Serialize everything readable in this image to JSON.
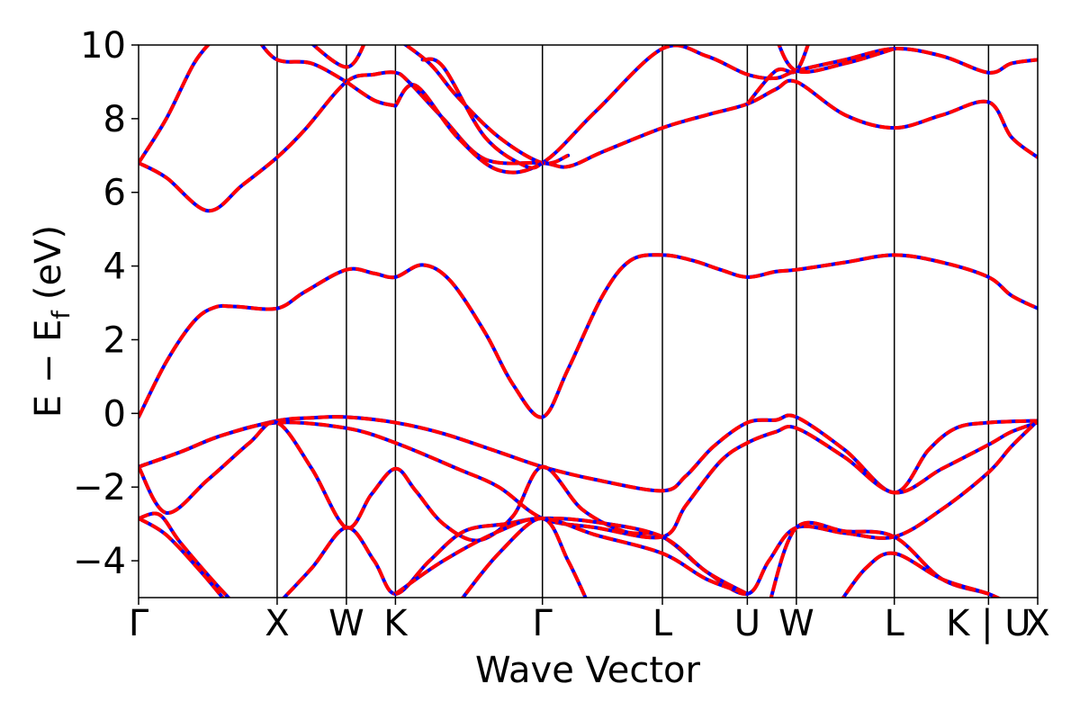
{
  "chart_data": {
    "type": "line",
    "title": "",
    "xlabel": "Wave Vector",
    "ylabel_main": "E − E",
    "ylabel_sub": "f",
    "ylabel_unit": "(eV)",
    "ylim": [
      -5,
      10
    ],
    "yticks": [
      -4,
      -2,
      0,
      2,
      4,
      6,
      8,
      10
    ],
    "ytick_labels": [
      "−4",
      "−2",
      "0",
      "2",
      "4",
      "6",
      "8",
      "10"
    ],
    "xlim": [
      0,
      6.49
    ],
    "grid": false,
    "legend": "none",
    "colors": {
      "line_primary": "#0000ff",
      "line_overlay": "#ff0000",
      "axis": "#000000"
    },
    "kpoints": [
      {
        "label": "Γ",
        "x": 0.0
      },
      {
        "label": "X",
        "x": 1.0
      },
      {
        "label": "W",
        "x": 1.5
      },
      {
        "label": "K",
        "x": 1.854
      },
      {
        "label": "Γ",
        "x": 2.915
      },
      {
        "label": "L",
        "x": 3.781
      },
      {
        "label": "U",
        "x": 4.394
      },
      {
        "label": "W",
        "x": 4.748
      },
      {
        "label": "L",
        "x": 5.455
      },
      {
        "label": "K | U",
        "x": 6.135
      },
      {
        "label": "X",
        "x": 6.49
      }
    ],
    "series": [
      {
        "values": [
          [
            0,
            -0.1
          ],
          [
            0.2,
            1.4
          ],
          [
            0.4,
            2.5
          ],
          [
            0.55,
            2.88
          ],
          [
            0.7,
            2.9
          ],
          [
            1.0,
            2.85
          ],
          [
            1.2,
            3.3
          ],
          [
            1.5,
            3.9
          ],
          [
            1.7,
            3.8
          ],
          [
            1.854,
            3.7
          ],
          [
            2.05,
            4.03
          ],
          [
            2.25,
            3.6
          ],
          [
            2.5,
            2.2
          ],
          [
            2.7,
            0.8
          ],
          [
            2.915,
            -0.1
          ],
          [
            3.1,
            1.2
          ],
          [
            3.35,
            3.2
          ],
          [
            3.55,
            4.15
          ],
          [
            3.781,
            4.3
          ],
          [
            4.0,
            4.15
          ],
          [
            4.2,
            3.9
          ],
          [
            4.394,
            3.7
          ],
          [
            4.6,
            3.85
          ],
          [
            4.748,
            3.9
          ],
          [
            5.1,
            4.1
          ],
          [
            5.455,
            4.3
          ],
          [
            5.8,
            4.1
          ],
          [
            6.135,
            3.7
          ],
          [
            6.3,
            3.2
          ],
          [
            6.49,
            2.85
          ]
        ]
      },
      {
        "values": [
          [
            0,
            -1.45
          ],
          [
            0.3,
            -1.05
          ],
          [
            0.6,
            -0.6
          ],
          [
            1.0,
            -0.2
          ],
          [
            1.25,
            -0.12
          ],
          [
            1.5,
            -0.1
          ],
          [
            1.854,
            -0.25
          ],
          [
            2.2,
            -0.55
          ],
          [
            2.6,
            -1.05
          ],
          [
            2.915,
            -1.45
          ],
          [
            3.3,
            -1.8
          ],
          [
            3.781,
            -2.1
          ],
          [
            3.95,
            -1.7
          ],
          [
            4.15,
            -0.9
          ],
          [
            4.394,
            -0.25
          ],
          [
            4.6,
            -0.18
          ],
          [
            4.748,
            -0.1
          ],
          [
            5.1,
            -1.0
          ],
          [
            5.455,
            -2.15
          ],
          [
            5.7,
            -1.0
          ],
          [
            5.9,
            -0.4
          ],
          [
            6.135,
            -0.25
          ],
          [
            6.49,
            -0.2
          ]
        ]
      },
      {
        "values": [
          [
            0,
            -1.45
          ],
          [
            0.3,
            -1.05
          ],
          [
            0.6,
            -0.6
          ],
          [
            1.0,
            -0.25
          ],
          [
            1.5,
            -0.4
          ],
          [
            1.854,
            -0.8
          ],
          [
            2.3,
            -1.5
          ],
          [
            2.6,
            -2.0
          ],
          [
            2.915,
            -2.85
          ],
          [
            3.3,
            -3.1
          ],
          [
            3.781,
            -3.35
          ],
          [
            3.95,
            -2.5
          ],
          [
            4.2,
            -1.3
          ],
          [
            4.394,
            -0.8
          ],
          [
            4.6,
            -0.5
          ],
          [
            4.748,
            -0.4
          ],
          [
            5.1,
            -1.2
          ],
          [
            5.455,
            -2.15
          ],
          [
            5.8,
            -1.5
          ],
          [
            6.135,
            -0.85
          ],
          [
            6.3,
            -0.5
          ],
          [
            6.49,
            -0.25
          ]
        ]
      },
      {
        "values": [
          [
            0,
            -1.45
          ],
          [
            0.2,
            -2.7
          ],
          [
            0.5,
            -1.8
          ],
          [
            0.8,
            -0.8
          ],
          [
            1.0,
            -0.25
          ],
          [
            1.25,
            -1.5
          ],
          [
            1.5,
            -3.1
          ],
          [
            1.68,
            -2.2
          ],
          [
            1.854,
            -1.5
          ],
          [
            2.0,
            -2.1
          ],
          [
            2.2,
            -3.0
          ],
          [
            2.45,
            -3.45
          ],
          [
            2.7,
            -2.8
          ],
          [
            2.915,
            -1.45
          ],
          [
            3.2,
            -2.6
          ],
          [
            3.5,
            -3.2
          ],
          [
            3.781,
            -3.35
          ],
          [
            4.1,
            -4.3
          ],
          [
            4.394,
            -4.9
          ],
          [
            4.55,
            -4.0
          ],
          [
            4.748,
            -3.1
          ],
          [
            5.1,
            -3.25
          ],
          [
            5.455,
            -3.35
          ],
          [
            5.8,
            -2.6
          ],
          [
            6.135,
            -1.6
          ],
          [
            6.3,
            -0.9
          ],
          [
            6.49,
            -0.2
          ]
        ]
      },
      {
        "values": [
          [
            0,
            -2.85
          ],
          [
            0.15,
            -2.75
          ],
          [
            0.3,
            -3.5
          ],
          [
            0.55,
            -4.6
          ],
          [
            0.7,
            -5.2
          ]
        ]
      },
      {
        "values": [
          [
            0,
            -2.85
          ],
          [
            0.2,
            -3.3
          ],
          [
            0.45,
            -4.3
          ],
          [
            0.65,
            -5.2
          ]
        ]
      },
      {
        "values": [
          [
            1.0,
            -5.2
          ],
          [
            1.25,
            -4.2
          ],
          [
            1.5,
            -3.1
          ],
          [
            1.7,
            -4.0
          ],
          [
            1.854,
            -4.9
          ],
          [
            2.1,
            -4.0
          ],
          [
            2.35,
            -3.2
          ],
          [
            2.65,
            -3.0
          ],
          [
            2.915,
            -2.85
          ],
          [
            3.3,
            -2.95
          ],
          [
            3.781,
            -3.35
          ],
          [
            4.1,
            -4.3
          ],
          [
            4.394,
            -4.9
          ]
        ]
      },
      {
        "values": [
          [
            1.854,
            -4.9
          ],
          [
            2.2,
            -4.0
          ],
          [
            2.6,
            -3.2
          ],
          [
            2.915,
            -2.85
          ],
          [
            3.3,
            -3.3
          ],
          [
            3.781,
            -3.8
          ],
          [
            4.1,
            -4.5
          ],
          [
            4.394,
            -4.9
          ]
        ]
      },
      {
        "values": [
          [
            2.3,
            -5.2
          ],
          [
            2.6,
            -3.8
          ],
          [
            2.915,
            -2.85
          ],
          [
            3.1,
            -4.0
          ],
          [
            3.25,
            -5.2
          ]
        ]
      },
      {
        "values": [
          [
            4.55,
            -5.2
          ],
          [
            4.748,
            -3.1
          ],
          [
            5.1,
            -3.2
          ],
          [
            5.455,
            -3.35
          ],
          [
            5.8,
            -4.5
          ],
          [
            6.135,
            -4.9
          ],
          [
            6.3,
            -5.2
          ]
        ]
      },
      {
        "values": [
          [
            5.05,
            -5.2
          ],
          [
            5.25,
            -4.2
          ],
          [
            5.455,
            -3.8
          ],
          [
            5.8,
            -4.5
          ],
          [
            6.135,
            -4.9
          ],
          [
            6.3,
            -5.2
          ]
        ]
      },
      {
        "values": [
          [
            0,
            6.8
          ],
          [
            0.2,
            6.4
          ],
          [
            0.5,
            5.5
          ],
          [
            0.75,
            6.2
          ],
          [
            1.0,
            6.95
          ],
          [
            1.2,
            7.7
          ],
          [
            1.5,
            9.0
          ],
          [
            1.7,
            9.2
          ],
          [
            1.854,
            9.25
          ],
          [
            1.95,
            9.0
          ],
          [
            2.2,
            8.0
          ],
          [
            2.5,
            6.9
          ],
          [
            2.915,
            6.8
          ],
          [
            3.1,
            6.7
          ],
          [
            3.35,
            7.1
          ],
          [
            3.781,
            7.75
          ],
          [
            4.1,
            8.1
          ],
          [
            4.394,
            8.4
          ],
          [
            4.6,
            8.8
          ],
          [
            4.748,
            9.0
          ],
          [
            5.1,
            8.1
          ],
          [
            5.455,
            7.75
          ],
          [
            5.8,
            8.1
          ],
          [
            6.135,
            8.45
          ],
          [
            6.3,
            7.5
          ],
          [
            6.49,
            6.95
          ]
        ]
      },
      {
        "values": [
          [
            0,
            6.8
          ],
          [
            0.2,
            8.0
          ],
          [
            0.4,
            9.5
          ],
          [
            0.55,
            10.2
          ]
        ]
      },
      {
        "values": [
          [
            0.85,
            10.2
          ],
          [
            1.0,
            9.6
          ],
          [
            1.25,
            9.5
          ],
          [
            1.5,
            9.0
          ]
        ]
      },
      {
        "values": [
          [
            1.854,
            8.35
          ],
          [
            2.0,
            8.9
          ],
          [
            2.3,
            7.5
          ],
          [
            2.6,
            6.6
          ],
          [
            2.915,
            6.8
          ],
          [
            3.3,
            8.2
          ],
          [
            3.781,
            9.9
          ],
          [
            4.1,
            9.7
          ],
          [
            4.394,
            9.2
          ],
          [
            4.6,
            9.1
          ],
          [
            4.748,
            9.3
          ],
          [
            5.1,
            9.6
          ],
          [
            5.455,
            9.9
          ],
          [
            5.8,
            9.7
          ],
          [
            6.135,
            9.25
          ],
          [
            6.3,
            9.5
          ],
          [
            6.49,
            9.6
          ]
        ]
      },
      {
        "values": [
          [
            1.5,
            9.0
          ],
          [
            1.7,
            8.5
          ],
          [
            1.854,
            8.35
          ]
        ]
      },
      {
        "values": [
          [
            1.2,
            10.2
          ],
          [
            1.5,
            9.4
          ],
          [
            1.65,
            10.2
          ]
        ]
      },
      {
        "values": [
          [
            1.854,
            10.2
          ],
          [
            2.1,
            9.5
          ],
          [
            2.3,
            8.6
          ],
          [
            2.6,
            7.5
          ],
          [
            2.915,
            6.8
          ],
          [
            3.1,
            7.0
          ]
        ]
      },
      {
        "values": [
          [
            2.05,
            9.6
          ],
          [
            2.2,
            9.4
          ],
          [
            2.5,
            7.5
          ],
          [
            2.8,
            6.7
          ],
          [
            2.915,
            6.8
          ]
        ]
      },
      {
        "values": [
          [
            4.394,
            8.4
          ],
          [
            4.6,
            9.3
          ],
          [
            4.748,
            9.3
          ],
          [
            4.85,
            10.2
          ]
        ]
      },
      {
        "values": [
          [
            4.6,
            10.2
          ],
          [
            4.748,
            9.3
          ],
          [
            5.1,
            9.5
          ],
          [
            5.455,
            9.9
          ]
        ]
      }
    ]
  }
}
